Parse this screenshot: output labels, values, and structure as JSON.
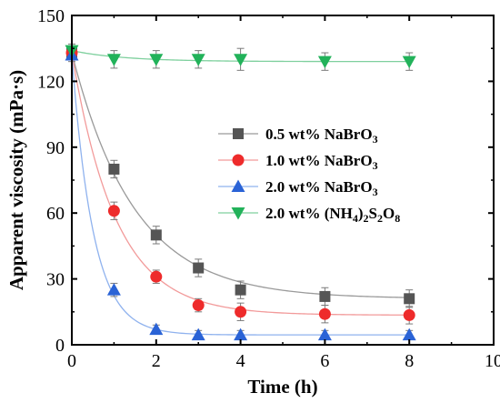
{
  "chart_data": {
    "type": "scatter",
    "title": "",
    "xlabel": "Time (h)",
    "ylabel": "Apparent viscosity (mPa·s)",
    "xlim": [
      0,
      10
    ],
    "ylim": [
      0,
      150
    ],
    "xticks": [
      0,
      2,
      4,
      6,
      8,
      10
    ],
    "yticks": [
      0,
      30,
      60,
      90,
      120,
      150
    ],
    "grid": false,
    "legend_position": "center-right",
    "series": [
      {
        "legend": [
          "0.5 wt% NaBrO",
          "3",
          ""
        ],
        "marker": "square",
        "color": "#555555",
        "line_color": "#9a9a9a",
        "x": [
          0,
          1,
          2,
          3,
          4,
          6,
          8
        ],
        "y": [
          133,
          80,
          50,
          35,
          25,
          22,
          21
        ],
        "error": [
          3,
          4,
          4,
          4,
          4,
          4,
          4
        ]
      },
      {
        "legend": [
          "1.0 wt% NaBrO",
          "3",
          ""
        ],
        "marker": "circle",
        "color": "#ee2b2b",
        "line_color": "#f29a9a",
        "x": [
          0,
          1,
          2,
          3,
          4,
          6,
          8
        ],
        "y": [
          133,
          61,
          31,
          18,
          15,
          14,
          13.5
        ],
        "error": [
          3,
          4,
          3,
          3,
          4,
          4,
          4
        ]
      },
      {
        "legend": [
          "2.0 wt% NaBrO",
          "3",
          ""
        ],
        "marker": "triangle-up",
        "color": "#2a63d6",
        "line_color": "#8fb2ee",
        "x": [
          0,
          1,
          2,
          3,
          4,
          6,
          8
        ],
        "y": [
          132,
          25,
          7,
          4.5,
          4.5,
          4.5,
          4.5
        ],
        "error": [
          3,
          3,
          2,
          2,
          2,
          2,
          2
        ]
      },
      {
        "legend": [
          "2.0 wt% (NH",
          "4",
          ")",
          "2",
          "S",
          "2",
          "O",
          "8"
        ],
        "marker": "triangle-down",
        "color": "#22b25a",
        "line_color": "#7fd09e",
        "x": [
          0,
          1,
          2,
          3,
          4,
          6,
          8
        ],
        "y": [
          134,
          130,
          130,
          130,
          130,
          129,
          129
        ],
        "error": [
          3,
          4,
          4,
          4,
          5,
          4,
          4
        ]
      }
    ]
  }
}
